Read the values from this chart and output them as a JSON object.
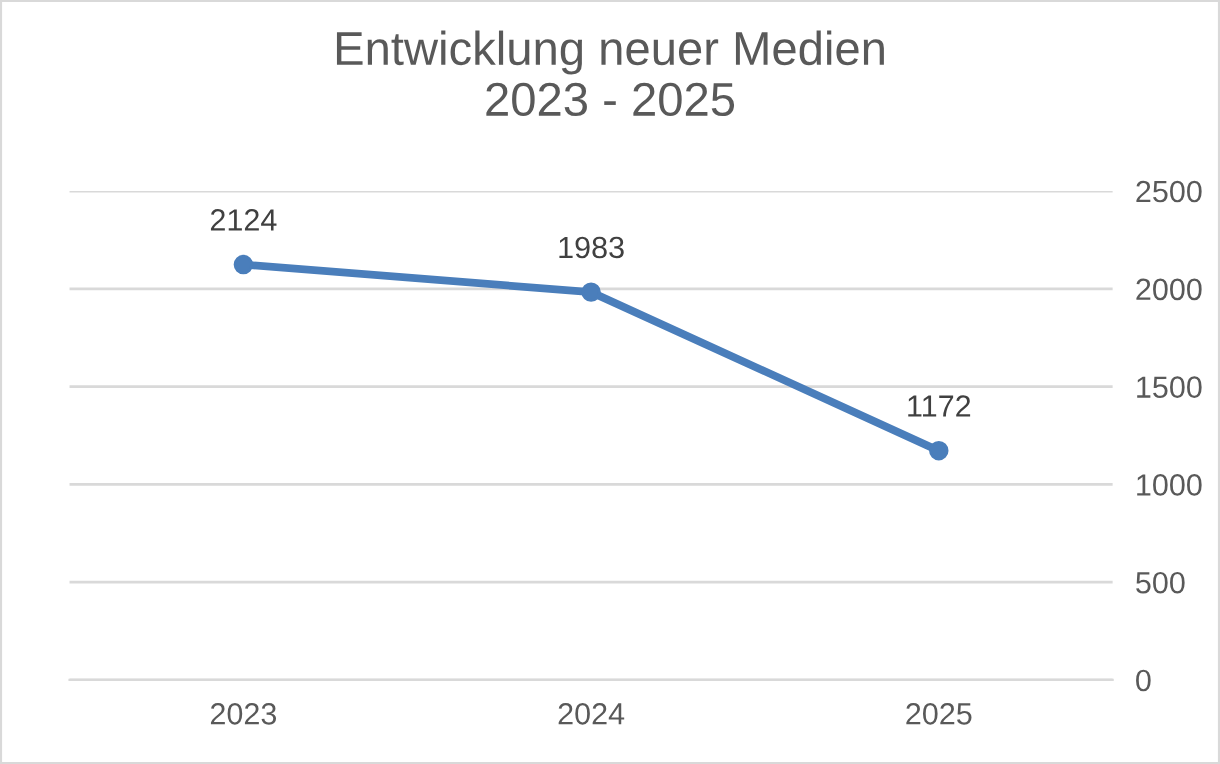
{
  "chart_data": {
    "type": "line",
    "title": "Entwicklung neuer Medien\n2023 - 2025",
    "categories": [
      "2023",
      "2024",
      "2025"
    ],
    "series": [
      {
        "color": "#4a7ebb",
        "values": [
          2124,
          1983,
          1172
        ]
      }
    ],
    "ylim": [
      0,
      2500
    ],
    "yticks": [
      0,
      500,
      1000,
      1500,
      2000,
      2500
    ],
    "grid": "y",
    "marker": "circle",
    "line_style": "solid",
    "data_labels": true
  }
}
